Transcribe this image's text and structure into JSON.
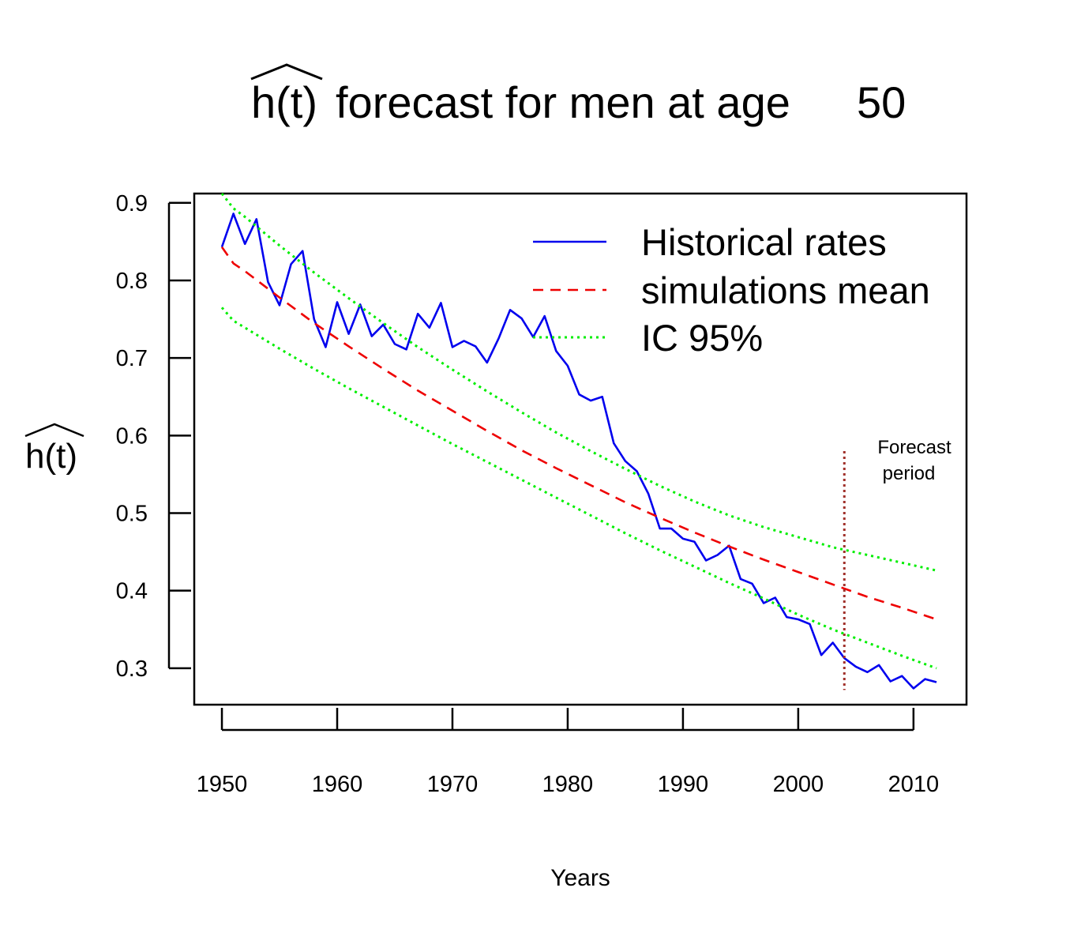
{
  "chart_data": {
    "type": "line",
    "title_prefix": "h(t)",
    "title_rest": "forecast for men at age",
    "title_age": "50",
    "xlabel": "Years",
    "ylabel": "h(t)",
    "xlim": [
      1947.6,
      2014.6
    ],
    "ylim": [
      0.253,
      0.912
    ],
    "x_ticks": [
      1950,
      1960,
      1970,
      1980,
      1990,
      2000,
      2010
    ],
    "x_tick_labels": [
      "1950",
      "1960",
      "1970",
      "1980",
      "1990",
      "2000",
      "2010"
    ],
    "y_ticks": [
      0.3,
      0.4,
      0.5,
      0.6,
      0.7,
      0.8,
      0.9
    ],
    "y_tick_labels": [
      "0.3",
      "0.4",
      "0.5",
      "0.6",
      "0.7",
      "0.8",
      "0.9"
    ],
    "legend_position": "top-right",
    "forecast_line": {
      "x": 2004,
      "y_range": [
        0.272,
        0.58
      ],
      "color": "#a0302a"
    },
    "annotation": [
      "Forecast",
      "period"
    ],
    "series": [
      {
        "name": "Historical rates",
        "style": "solid",
        "color": "#0000ee",
        "x": [
          1950,
          1951,
          1952,
          1953,
          1954,
          1955,
          1956,
          1957,
          1958,
          1959,
          1960,
          1961,
          1962,
          1963,
          1964,
          1965,
          1966,
          1967,
          1968,
          1969,
          1970,
          1971,
          1972,
          1973,
          1974,
          1975,
          1976,
          1977,
          1978,
          1979,
          1980,
          1981,
          1982,
          1983,
          1984,
          1985,
          1986,
          1987,
          1988,
          1989,
          1990,
          1991,
          1992,
          1993,
          1994,
          1995,
          1996,
          1997,
          1998,
          1999,
          2000,
          2001,
          2002,
          2003,
          2004,
          2005,
          2006,
          2007,
          2008,
          2009,
          2010,
          2011,
          2012
        ],
        "y": [
          0.843,
          0.886,
          0.847,
          0.879,
          0.798,
          0.768,
          0.821,
          0.838,
          0.75,
          0.714,
          0.772,
          0.731,
          0.769,
          0.728,
          0.743,
          0.718,
          0.711,
          0.757,
          0.739,
          0.771,
          0.714,
          0.722,
          0.715,
          0.694,
          0.725,
          0.762,
          0.751,
          0.727,
          0.754,
          0.709,
          0.69,
          0.653,
          0.645,
          0.65,
          0.59,
          0.567,
          0.554,
          0.525,
          0.48,
          0.48,
          0.467,
          0.463,
          0.439,
          0.446,
          0.458,
          0.415,
          0.409,
          0.384,
          0.391,
          0.366,
          0.363,
          0.357,
          0.317,
          0.333,
          0.313,
          0.302,
          0.295,
          0.304,
          0.283,
          0.29,
          0.274,
          0.286,
          0.282
        ]
      },
      {
        "name": "simulations mean",
        "style": "dashed",
        "color": "#ee0000",
        "x": [
          1950,
          1951,
          1952,
          1955,
          1958,
          1961,
          1964,
          1967,
          1970,
          1973,
          1976,
          1979,
          1982,
          1985,
          1988,
          1991,
          1994,
          1997,
          2000,
          2003,
          2006,
          2009,
          2012
        ],
        "y": [
          0.843,
          0.822,
          0.812,
          0.778,
          0.745,
          0.715,
          0.686,
          0.658,
          0.632,
          0.606,
          0.581,
          0.558,
          0.536,
          0.514,
          0.494,
          0.475,
          0.457,
          0.44,
          0.424,
          0.408,
          0.392,
          0.378,
          0.363
        ]
      },
      {
        "name": "IC  95%",
        "style": "dotted",
        "color": "#00ee00",
        "x": [
          1950,
          1951,
          1952,
          1955,
          1958,
          1961,
          1964,
          1967,
          1970,
          1973,
          1976,
          1979,
          1982,
          1985,
          1988,
          1991,
          1994,
          1997,
          2000,
          2003,
          2006,
          2009,
          2012
        ],
        "y": [
          0.912,
          0.893,
          0.882,
          0.845,
          0.81,
          0.777,
          0.745,
          0.714,
          0.685,
          0.657,
          0.63,
          0.604,
          0.58,
          0.557,
          0.535,
          0.515,
          0.497,
          0.482,
          0.469,
          0.456,
          0.446,
          0.436,
          0.426
        ]
      },
      {
        "style": "dotted",
        "color": "#00ee00",
        "x": [
          1950,
          1951,
          1952,
          1955,
          1958,
          1961,
          1964,
          1967,
          1970,
          1973,
          1976,
          1979,
          1982,
          1985,
          1988,
          1991,
          1994,
          1997,
          2000,
          2003,
          2006,
          2009,
          2012
        ],
        "y": [
          0.765,
          0.748,
          0.739,
          0.712,
          0.686,
          0.661,
          0.637,
          0.613,
          0.589,
          0.566,
          0.543,
          0.52,
          0.497,
          0.474,
          0.452,
          0.431,
          0.41,
          0.39,
          0.369,
          0.35,
          0.333,
          0.316,
          0.3
        ]
      }
    ]
  }
}
